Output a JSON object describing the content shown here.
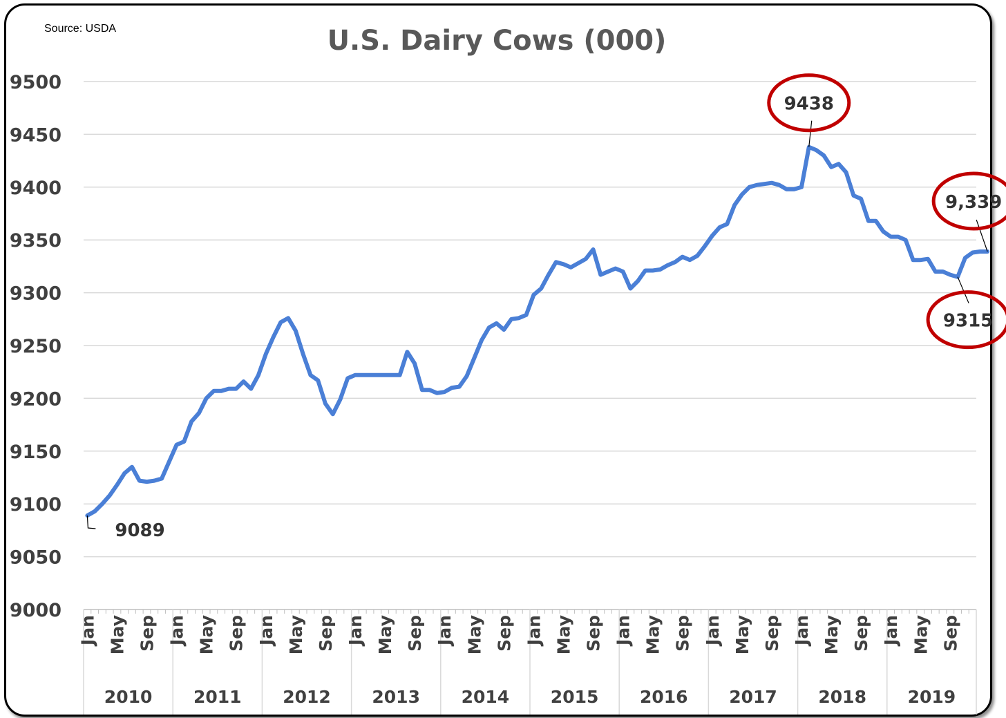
{
  "chart_data": {
    "type": "line",
    "title": "U.S. Dairy Cows (000)",
    "source": "Source: USDA",
    "ylim": [
      9000,
      9500
    ],
    "yticks": [
      9000,
      9050,
      9100,
      9150,
      9200,
      9250,
      9300,
      9350,
      9400,
      9450,
      9500
    ],
    "grid": true,
    "legend": "none",
    "month_tick_labels": [
      "Jan",
      "May",
      "Sep"
    ],
    "years": [
      "2010",
      "2011",
      "2012",
      "2013",
      "2014",
      "2015",
      "2016",
      "2017",
      "2018",
      "2019"
    ],
    "series": [
      {
        "color": "#4a7fd6",
        "values": [
          9089,
          9093,
          9100,
          9108,
          9118,
          9129,
          9135,
          9122,
          9121,
          9122,
          9124,
          9140,
          9156,
          9159,
          9178,
          9186,
          9200,
          9207,
          9207,
          9209,
          9209,
          9216,
          9209,
          9222,
          9242,
          9258,
          9272,
          9276,
          9264,
          9242,
          9222,
          9217,
          9195,
          9185,
          9199,
          9219,
          9222,
          9222,
          9222,
          9222,
          9222,
          9222,
          9222,
          9244,
          9233,
          9208,
          9208,
          9205,
          9206,
          9210,
          9211,
          9221,
          9238,
          9255,
          9267,
          9271,
          9265,
          9275,
          9276,
          9279,
          9298,
          9304,
          9317,
          9329,
          9327,
          9324,
          9328,
          9332,
          9341,
          9317,
          9320,
          9323,
          9320,
          9304,
          9311,
          9321,
          9321,
          9322,
          9326,
          9329,
          9334,
          9331,
          9335,
          9344,
          9354,
          9362,
          9365,
          9383,
          9393,
          9400,
          9402,
          9403,
          9404,
          9402,
          9398,
          9398,
          9400,
          9438,
          9435,
          9430,
          9419,
          9422,
          9414,
          9392,
          9389,
          9368,
          9368,
          9358,
          9353,
          9353,
          9350,
          9331,
          9331,
          9332,
          9320,
          9320,
          9317,
          9315,
          9333,
          9338,
          9339,
          9339
        ]
      }
    ],
    "annotations": [
      {
        "label": "9089",
        "index": 0,
        "circled": false
      },
      {
        "label": "9438",
        "index": 97,
        "circled": true
      },
      {
        "label": "9,339",
        "index": 121,
        "circled": true
      },
      {
        "label": "9315",
        "index": 117,
        "circled": true
      }
    ],
    "annotation_color": "#c00000"
  }
}
